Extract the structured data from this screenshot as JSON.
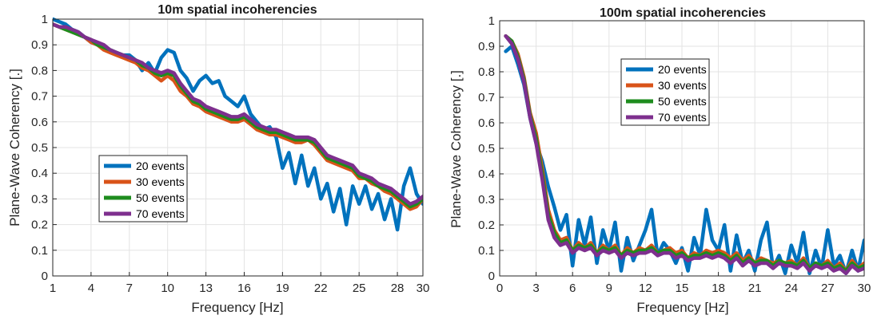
{
  "chart_data": [
    {
      "type": "line",
      "title": "10m spatial incoherencies",
      "xlabel": "Frequency [Hz]",
      "ylabel": "Plane-Wave Coherency [.]",
      "xlim": [
        1,
        30
      ],
      "ylim": [
        0,
        1
      ],
      "xticks": [
        "1",
        "4",
        "7",
        "10",
        "13",
        "16",
        "19",
        "22",
        "25",
        "28",
        "30"
      ],
      "yticks": [
        "0",
        "0.1",
        "0.2",
        "0.3",
        "0.4",
        "0.5",
        "0.6",
        "0.7",
        "0.8",
        "0.9",
        "1"
      ],
      "grid": true,
      "legend_position": "lower-left",
      "series": [
        {
          "name": "20 events",
          "color": "#0072BD",
          "x": [
            1,
            1.5,
            2,
            2.5,
            3,
            3.5,
            4,
            4.5,
            5,
            5.5,
            6,
            6.5,
            7,
            7.5,
            8,
            8.5,
            9,
            9.5,
            10,
            10.5,
            11,
            11.5,
            12,
            12.5,
            13,
            13.5,
            14,
            14.5,
            15,
            15.5,
            16,
            16.5,
            17,
            17.5,
            18,
            18.5,
            19,
            19.5,
            20,
            20.5,
            21,
            21.5,
            22,
            22.5,
            23,
            23.5,
            24,
            24.5,
            25,
            25.5,
            26,
            26.5,
            27,
            27.5,
            28,
            28.5,
            29,
            29.5,
            30
          ],
          "y": [
            1.0,
            0.99,
            0.98,
            0.96,
            0.95,
            0.93,
            0.91,
            0.9,
            0.89,
            0.88,
            0.87,
            0.86,
            0.86,
            0.84,
            0.8,
            0.83,
            0.79,
            0.85,
            0.88,
            0.87,
            0.8,
            0.77,
            0.72,
            0.76,
            0.78,
            0.75,
            0.76,
            0.7,
            0.68,
            0.66,
            0.7,
            0.63,
            0.6,
            0.57,
            0.58,
            0.54,
            0.42,
            0.48,
            0.36,
            0.47,
            0.35,
            0.42,
            0.3,
            0.36,
            0.25,
            0.34,
            0.2,
            0.35,
            0.28,
            0.35,
            0.26,
            0.32,
            0.22,
            0.3,
            0.18,
            0.35,
            0.42,
            0.32,
            0.28
          ]
        },
        {
          "name": "30 events",
          "color": "#D95319",
          "x": [
            1,
            1.5,
            2,
            2.5,
            3,
            3.5,
            4,
            4.5,
            5,
            5.5,
            6,
            6.5,
            7,
            7.5,
            8,
            8.5,
            9,
            9.5,
            10,
            10.5,
            11,
            11.5,
            12,
            12.5,
            13,
            13.5,
            14,
            14.5,
            15,
            15.5,
            16,
            16.5,
            17,
            17.5,
            18,
            18.5,
            19,
            19.5,
            20,
            20.5,
            21,
            21.5,
            22,
            22.5,
            23,
            23.5,
            24,
            24.5,
            25,
            25.5,
            26,
            26.5,
            27,
            27.5,
            28,
            28.5,
            29,
            29.5,
            30
          ],
          "y": [
            0.98,
            0.97,
            0.96,
            0.95,
            0.94,
            0.93,
            0.91,
            0.9,
            0.88,
            0.87,
            0.86,
            0.85,
            0.84,
            0.83,
            0.81,
            0.8,
            0.78,
            0.76,
            0.78,
            0.76,
            0.72,
            0.7,
            0.67,
            0.66,
            0.64,
            0.63,
            0.62,
            0.61,
            0.6,
            0.6,
            0.61,
            0.59,
            0.57,
            0.56,
            0.55,
            0.55,
            0.54,
            0.53,
            0.52,
            0.52,
            0.53,
            0.51,
            0.48,
            0.45,
            0.44,
            0.43,
            0.42,
            0.41,
            0.38,
            0.38,
            0.36,
            0.35,
            0.33,
            0.32,
            0.3,
            0.28,
            0.26,
            0.27,
            0.3
          ]
        },
        {
          "name": "50 events",
          "color": "#1E8C1E",
          "x": [
            1,
            1.5,
            2,
            2.5,
            3,
            3.5,
            4,
            4.5,
            5,
            5.5,
            6,
            6.5,
            7,
            7.5,
            8,
            8.5,
            9,
            9.5,
            10,
            10.5,
            11,
            11.5,
            12,
            12.5,
            13,
            13.5,
            14,
            14.5,
            15,
            15.5,
            16,
            16.5,
            17,
            17.5,
            18,
            18.5,
            19,
            19.5,
            20,
            20.5,
            21,
            21.5,
            22,
            22.5,
            23,
            23.5,
            24,
            24.5,
            25,
            25.5,
            26,
            26.5,
            27,
            27.5,
            28,
            28.5,
            29,
            29.5,
            30
          ],
          "y": [
            0.98,
            0.97,
            0.96,
            0.95,
            0.94,
            0.93,
            0.92,
            0.9,
            0.89,
            0.88,
            0.87,
            0.86,
            0.85,
            0.84,
            0.82,
            0.81,
            0.79,
            0.78,
            0.79,
            0.78,
            0.74,
            0.71,
            0.68,
            0.67,
            0.65,
            0.64,
            0.63,
            0.62,
            0.61,
            0.61,
            0.62,
            0.6,
            0.58,
            0.57,
            0.56,
            0.56,
            0.55,
            0.54,
            0.53,
            0.53,
            0.53,
            0.52,
            0.49,
            0.46,
            0.45,
            0.44,
            0.43,
            0.42,
            0.39,
            0.38,
            0.37,
            0.35,
            0.34,
            0.33,
            0.31,
            0.29,
            0.27,
            0.28,
            0.3
          ]
        },
        {
          "name": "70 events",
          "color": "#7E2F8E",
          "x": [
            1,
            1.5,
            2,
            2.5,
            3,
            3.5,
            4,
            4.5,
            5,
            5.5,
            6,
            6.5,
            7,
            7.5,
            8,
            8.5,
            9,
            9.5,
            10,
            10.5,
            11,
            11.5,
            12,
            12.5,
            13,
            13.5,
            14,
            14.5,
            15,
            15.5,
            16,
            16.5,
            17,
            17.5,
            18,
            18.5,
            19,
            19.5,
            20,
            20.5,
            21,
            21.5,
            22,
            22.5,
            23,
            23.5,
            24,
            24.5,
            25,
            25.5,
            26,
            26.5,
            27,
            27.5,
            28,
            28.5,
            29,
            29.5,
            30
          ],
          "y": [
            0.98,
            0.97,
            0.97,
            0.96,
            0.95,
            0.93,
            0.92,
            0.91,
            0.9,
            0.88,
            0.87,
            0.86,
            0.85,
            0.84,
            0.83,
            0.81,
            0.8,
            0.79,
            0.8,
            0.79,
            0.75,
            0.72,
            0.69,
            0.68,
            0.66,
            0.65,
            0.64,
            0.63,
            0.62,
            0.62,
            0.63,
            0.61,
            0.59,
            0.58,
            0.57,
            0.57,
            0.56,
            0.55,
            0.54,
            0.54,
            0.54,
            0.53,
            0.5,
            0.47,
            0.46,
            0.45,
            0.44,
            0.43,
            0.4,
            0.39,
            0.38,
            0.36,
            0.35,
            0.34,
            0.32,
            0.3,
            0.28,
            0.29,
            0.31
          ]
        }
      ]
    },
    {
      "type": "line",
      "title": "100m spatial incoherencies",
      "xlabel": "Frequency [Hz]",
      "ylabel": "Plane-Wave Coherency [.]",
      "xlim": [
        0,
        30
      ],
      "ylim": [
        0,
        1
      ],
      "xticks": [
        "0",
        "3",
        "6",
        "9",
        "12",
        "15",
        "18",
        "21",
        "24",
        "27",
        "30"
      ],
      "yticks": [
        "0",
        "0.1",
        "0.2",
        "0.3",
        "0.4",
        "0.5",
        "0.6",
        "0.7",
        "0.8",
        "0.9",
        "1"
      ],
      "grid": true,
      "legend_position": "upper-center",
      "series": [
        {
          "name": "20 events",
          "color": "#0072BD",
          "x": [
            0.5,
            1,
            1.5,
            2,
            2.5,
            3,
            3.5,
            4,
            4.5,
            5,
            5.5,
            6,
            6.5,
            7,
            7.5,
            8,
            8.5,
            9,
            9.5,
            10,
            10.5,
            11,
            11.5,
            12,
            12.5,
            13,
            13.5,
            14,
            14.5,
            15,
            15.5,
            16,
            16.5,
            17,
            17.5,
            18,
            18.5,
            19,
            19.5,
            20,
            20.5,
            21,
            21.5,
            22,
            22.5,
            23,
            23.5,
            24,
            24.5,
            25,
            25.5,
            26,
            26.5,
            27,
            27.5,
            28,
            28.5,
            29,
            29.5,
            30
          ],
          "y": [
            0.88,
            0.9,
            0.83,
            0.75,
            0.62,
            0.52,
            0.45,
            0.35,
            0.27,
            0.18,
            0.24,
            0.04,
            0.22,
            0.12,
            0.23,
            0.05,
            0.18,
            0.1,
            0.21,
            0.02,
            0.15,
            0.06,
            0.12,
            0.18,
            0.26,
            0.08,
            0.13,
            0.1,
            0.05,
            0.11,
            0.02,
            0.15,
            0.08,
            0.26,
            0.14,
            0.1,
            0.2,
            0.02,
            0.16,
            0.05,
            0.1,
            0.02,
            0.14,
            0.21,
            0.03,
            0.08,
            0.01,
            0.12,
            0.05,
            0.17,
            0.01,
            0.1,
            0.03,
            0.18,
            0.04,
            0.08,
            0.01,
            0.1,
            0.02,
            0.14
          ]
        },
        {
          "name": "30 events",
          "color": "#D95319",
          "x": [
            0.5,
            1,
            1.5,
            2,
            2.5,
            3,
            3.5,
            4,
            4.5,
            5,
            5.5,
            6,
            6.5,
            7,
            7.5,
            8,
            8.5,
            9,
            9.5,
            10,
            10.5,
            11,
            11.5,
            12,
            12.5,
            13,
            13.5,
            14,
            14.5,
            15,
            15.5,
            16,
            16.5,
            17,
            17.5,
            18,
            18.5,
            19,
            19.5,
            20,
            20.5,
            21,
            21.5,
            22,
            22.5,
            23,
            23.5,
            24,
            24.5,
            25,
            25.5,
            26,
            26.5,
            27,
            27.5,
            28,
            28.5,
            29,
            29.5,
            30
          ],
          "y": [
            0.94,
            0.92,
            0.87,
            0.78,
            0.64,
            0.56,
            0.42,
            0.26,
            0.18,
            0.14,
            0.15,
            0.1,
            0.13,
            0.11,
            0.13,
            0.09,
            0.12,
            0.1,
            0.12,
            0.08,
            0.11,
            0.09,
            0.11,
            0.1,
            0.12,
            0.09,
            0.1,
            0.11,
            0.09,
            0.1,
            0.07,
            0.09,
            0.08,
            0.1,
            0.09,
            0.1,
            0.09,
            0.07,
            0.09,
            0.06,
            0.08,
            0.05,
            0.07,
            0.06,
            0.05,
            0.06,
            0.05,
            0.06,
            0.04,
            0.07,
            0.03,
            0.05,
            0.04,
            0.06,
            0.03,
            0.05,
            0.02,
            0.06,
            0.03,
            0.05
          ]
        },
        {
          "name": "50 events",
          "color": "#1E8C1E",
          "x": [
            0.5,
            1,
            1.5,
            2,
            2.5,
            3,
            3.5,
            4,
            4.5,
            5,
            5.5,
            6,
            6.5,
            7,
            7.5,
            8,
            8.5,
            9,
            9.5,
            10,
            10.5,
            11,
            11.5,
            12,
            12.5,
            13,
            13.5,
            14,
            14.5,
            15,
            15.5,
            16,
            16.5,
            17,
            17.5,
            18,
            18.5,
            19,
            19.5,
            20,
            20.5,
            21,
            21.5,
            22,
            22.5,
            23,
            23.5,
            24,
            24.5,
            25,
            25.5,
            26,
            26.5,
            27,
            27.5,
            28,
            28.5,
            29,
            29.5,
            30
          ],
          "y": [
            0.94,
            0.92,
            0.86,
            0.77,
            0.63,
            0.54,
            0.4,
            0.24,
            0.17,
            0.13,
            0.14,
            0.1,
            0.12,
            0.11,
            0.12,
            0.09,
            0.11,
            0.1,
            0.11,
            0.08,
            0.1,
            0.09,
            0.1,
            0.1,
            0.11,
            0.09,
            0.1,
            0.1,
            0.08,
            0.09,
            0.07,
            0.08,
            0.08,
            0.09,
            0.08,
            0.09,
            0.08,
            0.06,
            0.08,
            0.05,
            0.07,
            0.05,
            0.06,
            0.06,
            0.04,
            0.06,
            0.05,
            0.05,
            0.04,
            0.06,
            0.03,
            0.05,
            0.04,
            0.05,
            0.03,
            0.04,
            0.02,
            0.05,
            0.03,
            0.04
          ]
        },
        {
          "name": "70 events",
          "color": "#7E2F8E",
          "x": [
            0.5,
            1,
            1.5,
            2,
            2.5,
            3,
            3.5,
            4,
            4.5,
            5,
            5.5,
            6,
            6.5,
            7,
            7.5,
            8,
            8.5,
            9,
            9.5,
            10,
            10.5,
            11,
            11.5,
            12,
            12.5,
            13,
            13.5,
            14,
            14.5,
            15,
            15.5,
            16,
            16.5,
            17,
            17.5,
            18,
            18.5,
            19,
            19.5,
            20,
            20.5,
            21,
            21.5,
            22,
            22.5,
            23,
            23.5,
            24,
            24.5,
            25,
            25.5,
            26,
            26.5,
            27,
            27.5,
            28,
            28.5,
            29,
            29.5,
            30
          ],
          "y": [
            0.94,
            0.91,
            0.85,
            0.76,
            0.62,
            0.52,
            0.38,
            0.22,
            0.15,
            0.12,
            0.13,
            0.09,
            0.11,
            0.1,
            0.11,
            0.08,
            0.1,
            0.09,
            0.1,
            0.07,
            0.09,
            0.08,
            0.09,
            0.09,
            0.1,
            0.08,
            0.09,
            0.09,
            0.07,
            0.08,
            0.06,
            0.07,
            0.07,
            0.08,
            0.07,
            0.08,
            0.07,
            0.05,
            0.07,
            0.04,
            0.06,
            0.04,
            0.05,
            0.05,
            0.03,
            0.05,
            0.04,
            0.04,
            0.03,
            0.05,
            0.02,
            0.04,
            0.03,
            0.04,
            0.02,
            0.03,
            0.01,
            0.04,
            0.02,
            0.03
          ]
        }
      ]
    }
  ]
}
